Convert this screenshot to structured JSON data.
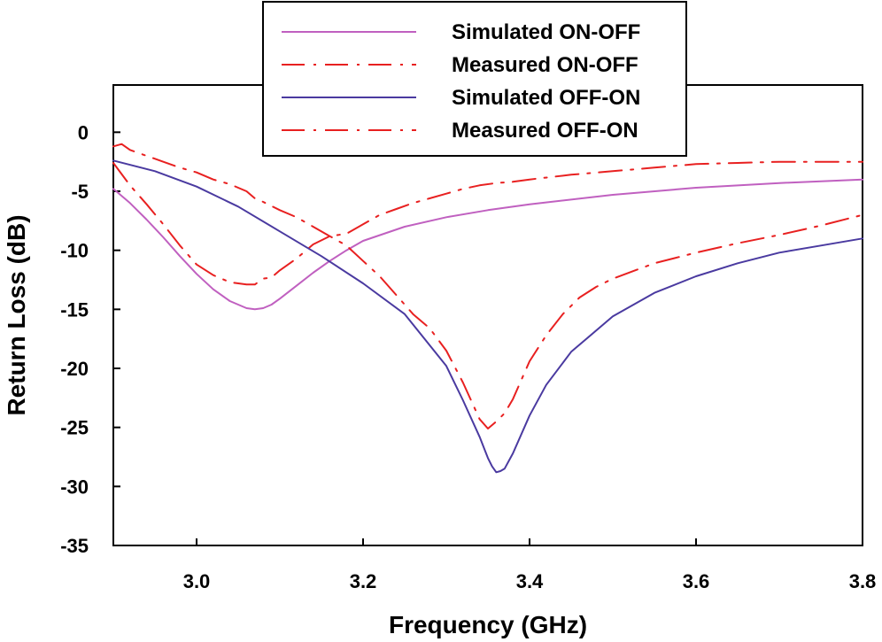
{
  "chart_data": {
    "type": "line",
    "title": "",
    "xlabel": "Frequency (GHz)",
    "ylabel": "Return Loss (dB)",
    "xlim": [
      2.9,
      3.8
    ],
    "ylim": [
      -35,
      4
    ],
    "x_ticks": [
      3.0,
      3.2,
      3.4,
      3.6,
      3.8
    ],
    "x_tick_labels": [
      "3.0",
      "3.2",
      "3.4",
      "3.6",
      "3.8"
    ],
    "y_ticks": [
      0,
      -5,
      -10,
      -15,
      -20,
      -25,
      -30,
      -35
    ],
    "y_tick_labels": [
      "0",
      "-5",
      "-10",
      "-15",
      "-20",
      "-25",
      "-30",
      "-35"
    ],
    "grid": false,
    "legend_position": "top-center",
    "colors": {
      "simulated_on_off": "#c060c0",
      "measured": "#e82020",
      "simulated_off_on": "#4a3aa0"
    },
    "series": [
      {
        "name": "Simulated ON-OFF",
        "style": "solid",
        "color": "#c060c0",
        "x": [
          2.9,
          2.92,
          2.94,
          2.96,
          2.98,
          3.0,
          3.02,
          3.04,
          3.06,
          3.07,
          3.08,
          3.09,
          3.1,
          3.12,
          3.14,
          3.16,
          3.18,
          3.2,
          3.25,
          3.3,
          3.35,
          3.4,
          3.5,
          3.6,
          3.7,
          3.8
        ],
        "y": [
          -4.8,
          -6.0,
          -7.4,
          -8.9,
          -10.5,
          -12.0,
          -13.3,
          -14.3,
          -14.9,
          -15.0,
          -14.9,
          -14.6,
          -14.1,
          -13.0,
          -11.9,
          -10.9,
          -10.0,
          -9.2,
          -8.0,
          -7.2,
          -6.6,
          -6.1,
          -5.3,
          -4.7,
          -4.3,
          -4.0
        ]
      },
      {
        "name": "Measured ON-OFF",
        "style": "dash-dot",
        "color": "#e82020",
        "x": [
          2.9,
          2.92,
          2.94,
          2.96,
          2.98,
          3.0,
          3.02,
          3.04,
          3.06,
          3.07,
          3.08,
          3.09,
          3.1,
          3.12,
          3.14,
          3.16,
          3.18,
          3.2,
          3.22,
          3.24,
          3.26,
          3.28,
          3.3,
          3.32,
          3.34,
          3.36,
          3.38,
          3.4,
          3.45,
          3.5,
          3.55,
          3.6,
          3.65,
          3.7,
          3.75,
          3.8
        ],
        "y": [
          -2.6,
          -4.5,
          -6.1,
          -7.8,
          -9.6,
          -11.2,
          -12.1,
          -12.7,
          -12.9,
          -12.9,
          -12.4,
          -12.3,
          -11.7,
          -10.7,
          -9.5,
          -8.8,
          -8.6,
          -7.8,
          -7.0,
          -6.5,
          -6.0,
          -5.6,
          -5.2,
          -4.8,
          -4.5,
          -4.3,
          -4.2,
          -4.0,
          -3.6,
          -3.3,
          -3.0,
          -2.7,
          -2.6,
          -2.5,
          -2.5,
          -2.5
        ]
      },
      {
        "name": "Simulated OFF-ON",
        "style": "solid",
        "color": "#4a3aa0",
        "x": [
          2.9,
          2.95,
          3.0,
          3.05,
          3.1,
          3.15,
          3.2,
          3.25,
          3.3,
          3.32,
          3.34,
          3.35,
          3.355,
          3.36,
          3.365,
          3.37,
          3.38,
          3.4,
          3.42,
          3.45,
          3.5,
          3.55,
          3.6,
          3.65,
          3.7,
          3.75,
          3.8
        ],
        "y": [
          -2.4,
          -3.3,
          -4.6,
          -6.3,
          -8.4,
          -10.5,
          -12.8,
          -15.4,
          -19.8,
          -22.7,
          -25.8,
          -27.6,
          -28.3,
          -28.8,
          -28.7,
          -28.5,
          -27.2,
          -24.0,
          -21.4,
          -18.6,
          -15.6,
          -13.6,
          -12.2,
          -11.1,
          -10.2,
          -9.6,
          -9.0
        ]
      },
      {
        "name": "Measured OFF-ON",
        "style": "dash-dot",
        "color": "#e82020",
        "x": [
          2.9,
          2.91,
          2.92,
          2.94,
          2.96,
          2.98,
          3.0,
          3.02,
          3.04,
          3.06,
          3.07,
          3.08,
          3.1,
          3.12,
          3.14,
          3.16,
          3.18,
          3.2,
          3.22,
          3.24,
          3.26,
          3.28,
          3.3,
          3.32,
          3.34,
          3.35,
          3.36,
          3.37,
          3.38,
          3.4,
          3.42,
          3.44,
          3.46,
          3.48,
          3.5,
          3.55,
          3.6,
          3.65,
          3.7,
          3.75,
          3.8
        ],
        "y": [
          -1.2,
          -1.0,
          -1.5,
          -2.0,
          -2.5,
          -3.0,
          -3.4,
          -4.0,
          -4.4,
          -5.0,
          -5.6,
          -5.9,
          -6.6,
          -7.2,
          -8.0,
          -8.8,
          -9.6,
          -10.9,
          -12.2,
          -13.8,
          -15.4,
          -16.6,
          -18.5,
          -21.2,
          -24.3,
          -25.1,
          -24.5,
          -23.8,
          -22.6,
          -19.4,
          -17.2,
          -15.4,
          -14.0,
          -13.1,
          -12.4,
          -11.1,
          -10.2,
          -9.4,
          -8.7,
          -7.9,
          -7.0
        ]
      }
    ]
  }
}
